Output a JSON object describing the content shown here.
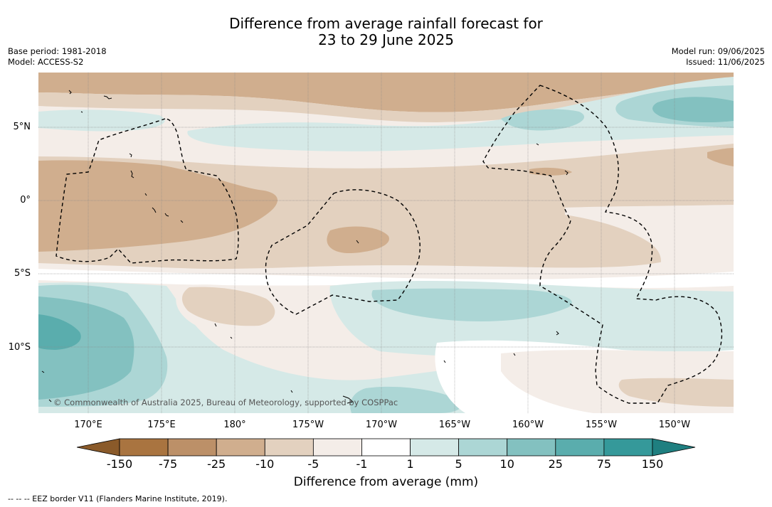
{
  "title": {
    "line1": "Difference from average rainfall forecast for",
    "line2": "23 to 29 June 2025"
  },
  "meta": {
    "base_period": "Base period: 1981-2018",
    "model": "Model: ACCESS-S2",
    "model_run": "Model run: 09/06/2025",
    "issued": "Issued: 11/06/2025"
  },
  "map": {
    "lat_labels": [
      "5°N",
      "0°",
      "5°S",
      "10°S"
    ],
    "lon_labels": [
      "170°E",
      "175°E",
      "180°",
      "175°W",
      "170°W",
      "165°W",
      "160°W",
      "155°W",
      "150°W"
    ],
    "copyright": "© Commonwealth of Australia 2025, Bureau of Meteorology, supported by COSPPac"
  },
  "colorbar": {
    "labels": [
      "-150",
      "-75",
      "-25",
      "-10",
      "-5",
      "-1",
      "1",
      "5",
      "10",
      "25",
      "75",
      "150"
    ],
    "colors": [
      "#a97440",
      "#bc9068",
      "#d0ae8e",
      "#e3d1bf",
      "#f4ede8",
      "#ffffff",
      "#d5e9e7",
      "#acd6d5",
      "#83c1c0",
      "#5aadad",
      "#35999a"
    ],
    "end_low": "#8a5a2a",
    "end_high": "#1f7f80",
    "title": "Difference from average (mm)"
  },
  "legend": {
    "eez": "--  --  -- EEZ border V11 (Flanders Marine Institute, 2019)."
  }
}
